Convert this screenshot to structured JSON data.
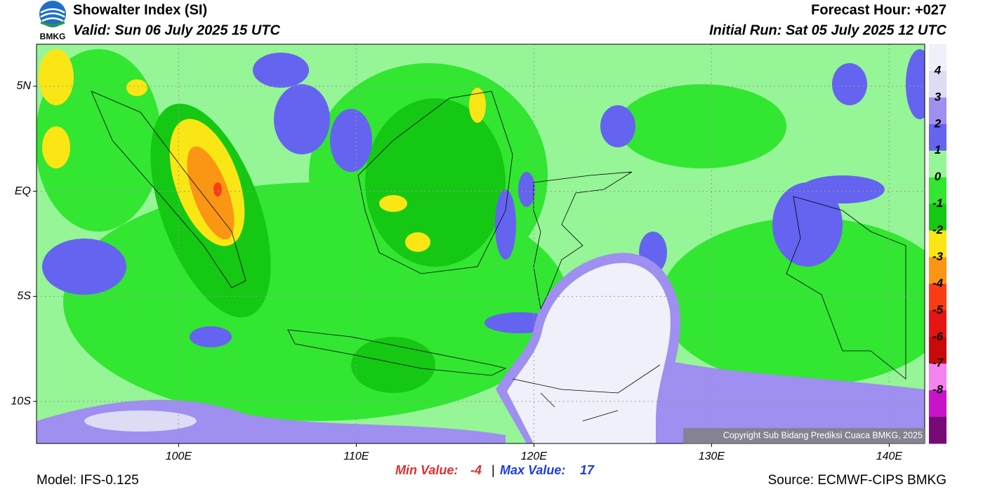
{
  "header": {
    "logo_text": "BMKG",
    "title": "Showalter Index (SI)",
    "valid": "Valid: Sun 06 July 2025 15 UTC",
    "forecast_hour": "Forecast Hour: +027",
    "initial_run": "Initial Run: Sat 05 July 2025 12 UTC"
  },
  "map": {
    "lonlim": [
      92,
      142
    ],
    "latlim": [
      -12,
      7
    ],
    "lon_ticks": [
      {
        "value": 100,
        "label": "100E"
      },
      {
        "value": 110,
        "label": "110E"
      },
      {
        "value": 120,
        "label": "120E"
      },
      {
        "value": 130,
        "label": "130E"
      },
      {
        "value": 140,
        "label": "140E"
      }
    ],
    "lat_ticks": [
      {
        "value": 5,
        "label": "5N"
      },
      {
        "value": 0,
        "label": "EQ"
      },
      {
        "value": -5,
        "label": "5S"
      },
      {
        "value": -10,
        "label": "10S"
      }
    ],
    "copyright": "Copyright Sub Bidang Prediksi Cuaca BMKG, 2025"
  },
  "colorbar": {
    "colors": [
      "#f0f0fa",
      "#dcdcf5",
      "#9f8ff0",
      "#6464f0",
      "#96f596",
      "#32e632",
      "#14c814",
      "#fae614",
      "#fa9614",
      "#fa3c14",
      "#e61414",
      "#c80a0a",
      "#f582f0",
      "#c814c8",
      "#780a78"
    ],
    "ticks": [
      4,
      3,
      2,
      1,
      0,
      -1,
      -2,
      -3,
      -4,
      -5,
      -6,
      -7,
      -8
    ]
  },
  "stats": {
    "min_label": "Min Value:",
    "min_value": -4,
    "separator": "|",
    "max_label": "Max Value:",
    "max_value": 17
  },
  "footer": {
    "model": "Model: IFS-0.125",
    "source": "Source: ECMWF-CIPS BMKG"
  }
}
